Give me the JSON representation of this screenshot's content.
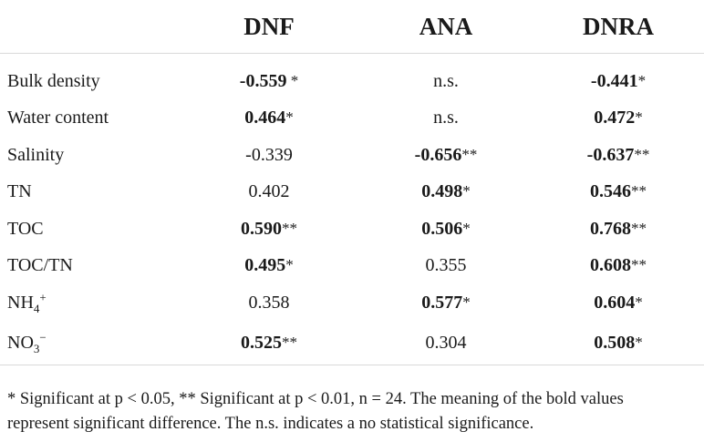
{
  "table": {
    "columns": [
      "",
      "DNF",
      "ANA",
      "DNRA"
    ],
    "rows": [
      {
        "label": "Bulk density",
        "label_base": "",
        "label_sub": "",
        "label_sup": "",
        "cells": [
          {
            "value": "-0.559",
            "sig": " *",
            "bold": true
          },
          {
            "value": "n.s.",
            "sig": "",
            "bold": false
          },
          {
            "value": "-0.441",
            "sig": "*",
            "bold": true
          }
        ]
      },
      {
        "label": "Water content",
        "label_base": "",
        "label_sub": "",
        "label_sup": "",
        "cells": [
          {
            "value": "0.464",
            "sig": "*",
            "bold": true
          },
          {
            "value": "n.s.",
            "sig": "",
            "bold": false
          },
          {
            "value": "0.472",
            "sig": "*",
            "bold": true
          }
        ]
      },
      {
        "label": "Salinity",
        "label_base": "",
        "label_sub": "",
        "label_sup": "",
        "cells": [
          {
            "value": "-0.339",
            "sig": "",
            "bold": false
          },
          {
            "value": "-0.656",
            "sig": "**",
            "bold": true
          },
          {
            "value": "-0.637",
            "sig": "**",
            "bold": true
          }
        ]
      },
      {
        "label": "TN",
        "label_base": "",
        "label_sub": "",
        "label_sup": "",
        "cells": [
          {
            "value": "0.402",
            "sig": "",
            "bold": false
          },
          {
            "value": "0.498",
            "sig": "*",
            "bold": true
          },
          {
            "value": "0.546",
            "sig": "**",
            "bold": true
          }
        ]
      },
      {
        "label": "TOC",
        "label_base": "",
        "label_sub": "",
        "label_sup": "",
        "cells": [
          {
            "value": "0.590",
            "sig": "**",
            "bold": true
          },
          {
            "value": "0.506",
            "sig": "*",
            "bold": true
          },
          {
            "value": "0.768",
            "sig": "**",
            "bold": true
          }
        ]
      },
      {
        "label": "TOC/TN",
        "label_base": "",
        "label_sub": "",
        "label_sup": "",
        "cells": [
          {
            "value": "0.495",
            "sig": "*",
            "bold": true
          },
          {
            "value": "0.355",
            "sig": "",
            "bold": false
          },
          {
            "value": "0.608",
            "sig": "**",
            "bold": true
          }
        ]
      },
      {
        "label": "",
        "label_base": "NH",
        "label_sub": "4",
        "label_sup": "+",
        "cells": [
          {
            "value": "0.358",
            "sig": "",
            "bold": false
          },
          {
            "value": "0.577",
            "sig": "*",
            "bold": true
          },
          {
            "value": "0.604",
            "sig": "*",
            "bold": true
          }
        ]
      },
      {
        "label": "",
        "label_base": "NO",
        "label_sub": "3",
        "label_sup": "−",
        "cells": [
          {
            "value": "0.525",
            "sig": "**",
            "bold": true
          },
          {
            "value": "0.304",
            "sig": "",
            "bold": false
          },
          {
            "value": "0.508",
            "sig": "*",
            "bold": true
          }
        ]
      }
    ]
  },
  "footnote": {
    "line1": "* Significant at p < 0.05, ** Significant at p < 0.01, n = 24. The meaning of the bold values",
    "line2": "represent significant difference. The n.s. indicates a no statistical significance."
  }
}
